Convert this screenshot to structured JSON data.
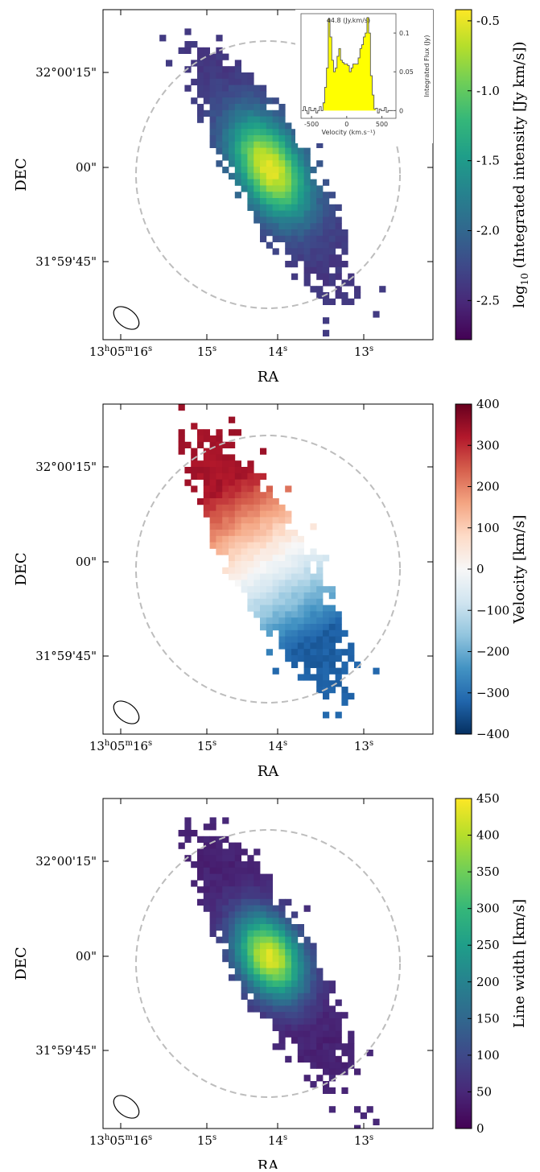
{
  "panels": [
    {
      "id": "moment0",
      "type": "heatmap",
      "map_kind": "mom0",
      "colormap": "viridis",
      "xlabel": "RA",
      "ylabel": "DEC",
      "x_ticks": [
        {
          "label": "13h05m16s",
          "base": "13",
          "sup1": "h",
          "mid": "05",
          "sup2": "m",
          "num": "16",
          "sup3": "s",
          "ra_s": 16
        },
        {
          "label": "15s",
          "num": "15",
          "sup3": "s",
          "ra_s": 15
        },
        {
          "label": "14s",
          "num": "14",
          "sup3": "s",
          "ra_s": 14
        },
        {
          "label": "13s",
          "num": "13",
          "sup3": "s",
          "ra_s": 13
        }
      ],
      "y_ticks": [
        {
          "label": "32°00'15\"",
          "dec_arcsec": 15
        },
        {
          "label": "00\"",
          "dec_arcsec": 0
        },
        {
          "label": "31°59'45\"",
          "dec_arcsec": -15
        }
      ],
      "colorbar": {
        "label_pre": "log",
        "label_sub": "10",
        "label_post": " (Integrated intensity [Jy km/s])",
        "min": -2.78,
        "max": -0.42,
        "ticks": [
          "-0.5",
          "-1.0",
          "-1.5",
          "-2.0",
          "-2.5"
        ],
        "tick_values": [
          -0.5,
          -1.0,
          -1.5,
          -2.0,
          -2.5
        ],
        "colors": [
          "#440154",
          "#482878",
          "#3e4989",
          "#31688e",
          "#26828e",
          "#1f9e89",
          "#35b779",
          "#6ece58",
          "#b5de2b",
          "#fde725"
        ]
      },
      "inset": {
        "title": "44.8 (Jy.km/s)",
        "xlabel": "Velocity (km.s⁻¹)",
        "ylabel": "Integrated Flux (Jy)",
        "x_ticks": [
          "-500",
          "0",
          "500"
        ],
        "x_tick_values": [
          -500,
          0,
          500
        ],
        "y_ticks": [
          "0",
          "0.05",
          "0.1"
        ],
        "y_tick_values": [
          0,
          0.05,
          0.1
        ],
        "xlim": [
          -650,
          700
        ],
        "ylim": [
          -0.01,
          0.125
        ],
        "fill_color": "#ffff00",
        "velocity": [
          -625,
          -600,
          -575,
          -550,
          -525,
          -500,
          -475,
          -450,
          -425,
          -400,
          -375,
          -350,
          -325,
          -300,
          -275,
          -250,
          -225,
          -200,
          -175,
          -150,
          -125,
          -100,
          -75,
          -50,
          -25,
          0,
          25,
          50,
          75,
          100,
          125,
          150,
          175,
          200,
          225,
          250,
          275,
          300,
          325,
          350,
          375,
          400,
          425,
          450,
          475,
          500,
          525,
          550,
          575,
          600,
          625,
          650
        ],
        "flux": [
          0.0,
          0.005,
          0.0,
          -0.004,
          0.004,
          0.0,
          0.0,
          0.003,
          -0.003,
          0.0,
          0.005,
          0.0,
          0.01,
          0.03,
          0.055,
          0.118,
          0.095,
          0.065,
          0.05,
          0.055,
          0.07,
          0.08,
          0.065,
          0.062,
          0.06,
          0.06,
          0.058,
          0.05,
          0.055,
          0.06,
          0.06,
          0.06,
          0.068,
          0.08,
          0.085,
          0.095,
          0.1,
          0.12,
          0.1,
          0.045,
          0.02,
          0.002,
          0.003,
          -0.003,
          0.002,
          0.0,
          0.0,
          0.004,
          -0.002,
          0.0,
          0.0,
          0.0
        ]
      }
    },
    {
      "id": "moment1",
      "type": "heatmap",
      "map_kind": "mom1",
      "colormap": "RdBu_r",
      "xlabel": "RA",
      "ylabel": "DEC",
      "x_ticks": [
        {
          "label": "13h05m16s",
          "base": "13",
          "sup1": "h",
          "mid": "05",
          "sup2": "m",
          "num": "16",
          "sup3": "s",
          "ra_s": 16
        },
        {
          "label": "15s",
          "num": "15",
          "sup3": "s",
          "ra_s": 15
        },
        {
          "label": "14s",
          "num": "14",
          "sup3": "s",
          "ra_s": 14
        },
        {
          "label": "13s",
          "num": "13",
          "sup3": "s",
          "ra_s": 13
        }
      ],
      "y_ticks": [
        {
          "label": "32°00'15\"",
          "dec_arcsec": 15
        },
        {
          "label": "00\"",
          "dec_arcsec": 0
        },
        {
          "label": "31°59'45\"",
          "dec_arcsec": -15
        }
      ],
      "colorbar": {
        "label_pre": "Velocity [km/s]",
        "label_sub": "",
        "label_post": "",
        "min": -400,
        "max": 400,
        "ticks": [
          "400",
          "300",
          "200",
          "100",
          "0",
          "−100",
          "−200",
          "−300",
          "−400"
        ],
        "tick_values": [
          400,
          300,
          200,
          100,
          0,
          -100,
          -200,
          -300,
          -400
        ],
        "colors": [
          "#053061",
          "#2166ac",
          "#4393c3",
          "#92c5de",
          "#d1e5f0",
          "#f7f7f7",
          "#fddbc7",
          "#f4a582",
          "#d6604d",
          "#b2182b",
          "#67001f"
        ]
      }
    },
    {
      "id": "moment2",
      "type": "heatmap",
      "map_kind": "mom2",
      "colormap": "viridis",
      "xlabel": "RA",
      "ylabel": "DEC",
      "x_ticks": [
        {
          "label": "13h05m16s",
          "base": "13",
          "sup1": "h",
          "mid": "05",
          "sup2": "m",
          "num": "16",
          "sup3": "s",
          "ra_s": 16
        },
        {
          "label": "15s",
          "num": "15",
          "sup3": "s",
          "ra_s": 15
        },
        {
          "label": "14s",
          "num": "14",
          "sup3": "s",
          "ra_s": 14
        },
        {
          "label": "13s",
          "num": "13",
          "sup3": "s",
          "ra_s": 13
        }
      ],
      "y_ticks": [
        {
          "label": "32°00'15\"",
          "dec_arcsec": 15
        },
        {
          "label": "00\"",
          "dec_arcsec": 0
        },
        {
          "label": "31°59'45\"",
          "dec_arcsec": -15
        }
      ],
      "colorbar": {
        "label_pre": "Line width [km/s]",
        "label_sub": "",
        "label_post": "",
        "min": 0,
        "max": 450,
        "ticks": [
          "450",
          "400",
          "350",
          "300",
          "250",
          "200",
          "150",
          "100",
          "50",
          "0"
        ],
        "tick_values": [
          450,
          400,
          350,
          300,
          250,
          200,
          150,
          100,
          50,
          0
        ],
        "colors": [
          "#440154",
          "#482878",
          "#3e4989",
          "#31688e",
          "#26828e",
          "#1f9e89",
          "#35b779",
          "#6ece58",
          "#b5de2b",
          "#fde725"
        ]
      }
    }
  ]
}
